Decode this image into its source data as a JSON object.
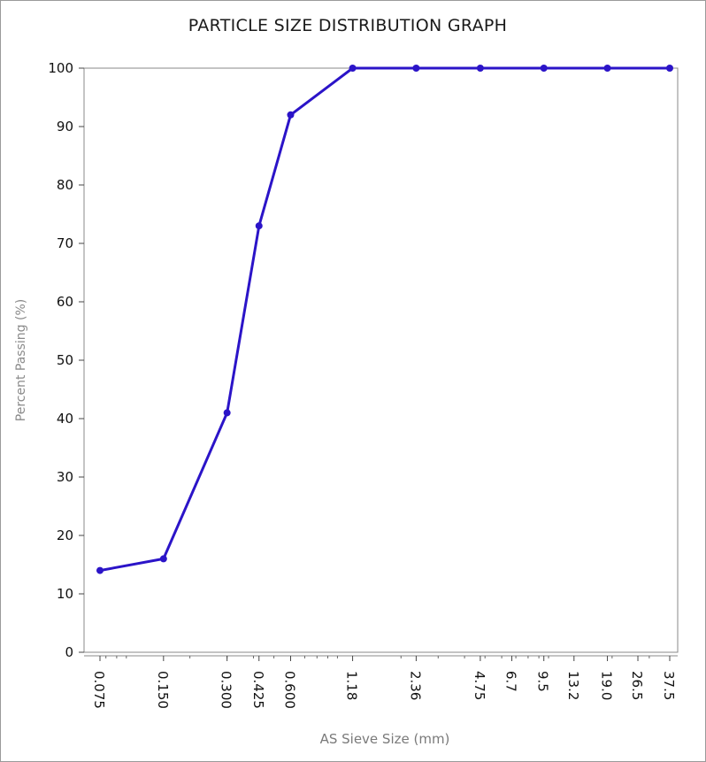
{
  "chart_data": {
    "type": "line",
    "title": "PARTICLE SIZE DISTRIBUTION GRAPH",
    "xlabel": "AS Sieve Size (mm)",
    "ylabel": "Percent Passing (%)",
    "x_scale": "log",
    "categories": [
      "0.075",
      "0.150",
      "0.300",
      "0.425",
      "0.600",
      "1.18",
      "2.36",
      "4.75",
      "6.7",
      "9.5",
      "13.2",
      "19.0",
      "26.5",
      "37.5"
    ],
    "x": [
      0.075,
      0.15,
      0.3,
      0.425,
      0.6,
      1.18,
      2.36,
      4.75,
      9.5,
      19.0,
      37.5
    ],
    "y": [
      14,
      16,
      41,
      73,
      92,
      100,
      100,
      100,
      100,
      100,
      100
    ],
    "ylim": [
      0,
      100
    ],
    "yticks": [
      0,
      10,
      20,
      30,
      40,
      50,
      60,
      70,
      80,
      90,
      100
    ],
    "grid": true,
    "series_color": "#2b14c8"
  }
}
